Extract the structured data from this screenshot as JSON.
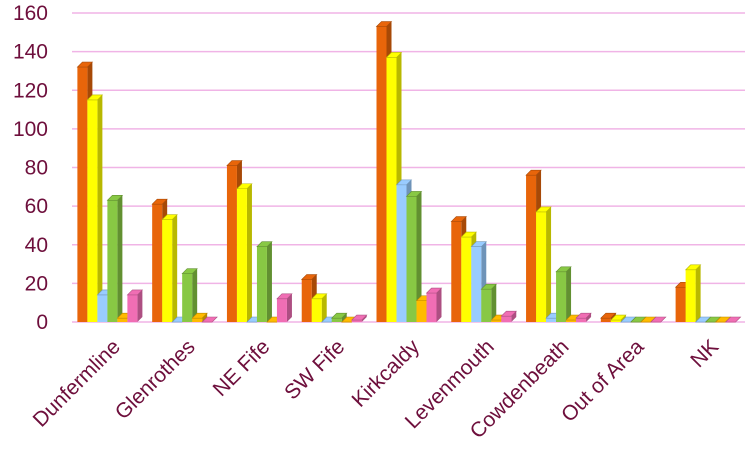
{
  "chart_data": {
    "type": "bar",
    "title": "",
    "xlabel": "",
    "ylabel": "",
    "ylim": [
      0,
      160
    ],
    "yticks": [
      0,
      20,
      40,
      60,
      80,
      100,
      120,
      140,
      160
    ],
    "grid": true,
    "legend": "none",
    "gridline_color": "#f0b4e6",
    "tick_label_color": "#6e0f3c",
    "categories": [
      "Dunfermline",
      "Glenrothes",
      "NE Fife",
      "SW Fife",
      "Kirkcaldy",
      "Levenmouth",
      "Cowdenbeath",
      "Out of Area",
      "NK"
    ],
    "series": [
      {
        "color": "#e8650a",
        "values": [
          132,
          61,
          81,
          22,
          153,
          52,
          76,
          2,
          18
        ]
      },
      {
        "color": "#ffff00",
        "values": [
          115,
          53,
          69,
          12,
          137,
          44,
          57,
          1,
          27
        ]
      },
      {
        "color": "#99ccff",
        "values": [
          14,
          0,
          0,
          0,
          71,
          39,
          2,
          0,
          0
        ]
      },
      {
        "color": "#88c844",
        "values": [
          63,
          25,
          39,
          2,
          65,
          17,
          26,
          0,
          0
        ]
      },
      {
        "color": "#ffbb00",
        "values": [
          2,
          2,
          0,
          0,
          11,
          1,
          1,
          0,
          0
        ]
      },
      {
        "color": "#f06eb4",
        "values": [
          14,
          0,
          12,
          1,
          15,
          3,
          2,
          0,
          0
        ]
      }
    ]
  }
}
